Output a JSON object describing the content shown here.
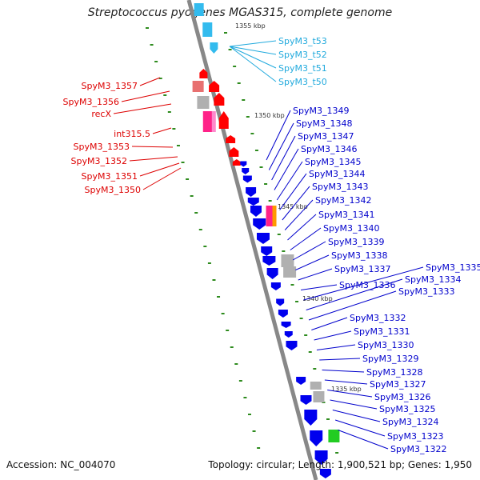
{
  "title": "Streptococcus pyogenes MGAS315, complete genome",
  "accession": "Accession: NC_004070",
  "summary": "Topology: circular; Length: 1,900,521 bp; Genes: 1,950",
  "colors": {
    "backbone": "#888888",
    "tick": "#2e8b1e",
    "forward_gene": "#ff0000",
    "reverse_gene": "#0000ee",
    "trna": "#33bbee",
    "pseudo": "#b0b0b0",
    "label_red": "#dd0000",
    "label_blue": "#0000cc",
    "label_cyan": "#22aadd"
  },
  "scale_labels": [
    "1355 kbp",
    "1350 kbp",
    "1345 kbp",
    "1340 kbp",
    "1335 kbp"
  ],
  "labels": {
    "trna": [
      "SpyM3_t53",
      "SpyM3_t52",
      "SpyM3_t51",
      "SpyM3_t50"
    ],
    "left": [
      "SpyM3_1357",
      "SpyM3_1356",
      "recX",
      "int315.5",
      "SpyM3_1353",
      "SpyM3_1352",
      "SpyM3_1351",
      "SpyM3_1350"
    ],
    "right": [
      "SpyM3_1349",
      "SpyM3_1348",
      "SpyM3_1347",
      "SpyM3_1346",
      "SpyM3_1345",
      "SpyM3_1344",
      "SpyM3_1343",
      "SpyM3_1342",
      "SpyM3_1341",
      "SpyM3_1340",
      "SpyM3_1339",
      "SpyM3_1338",
      "SpyM3_1337",
      "SpyM3_1336",
      "SpyM3_1335",
      "SpyM3_1334",
      "SpyM3_1333",
      "SpyM3_1332",
      "SpyM3_1331",
      "SpyM3_1330",
      "SpyM3_1329",
      "SpyM3_1328",
      "SpyM3_1327",
      "SpyM3_1326",
      "SpyM3_1325",
      "SpyM3_1324",
      "SpyM3_1323",
      "SpyM3_1322"
    ]
  }
}
